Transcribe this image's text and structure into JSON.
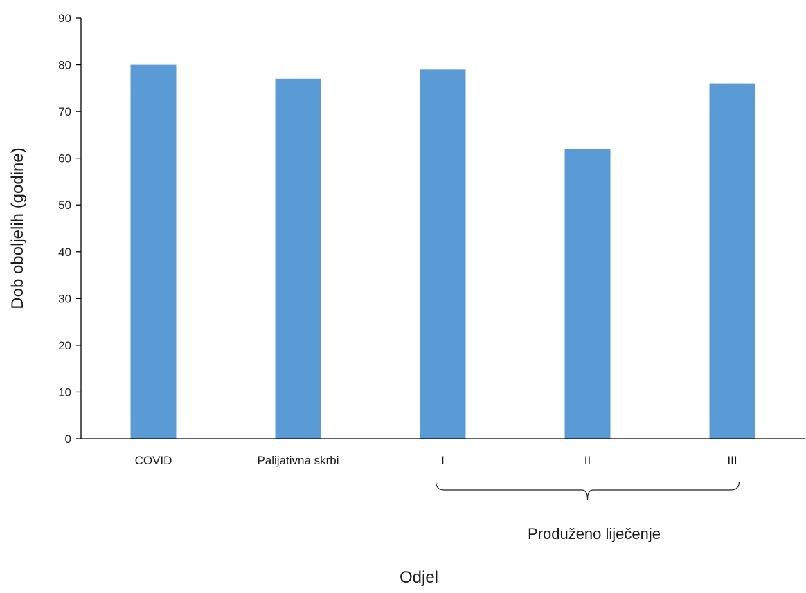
{
  "chart_data": {
    "type": "bar",
    "title": "",
    "xlabel": "Odjel",
    "ylabel": "Dob oboljelih (godine)",
    "categories": [
      "COVID",
      "Palijativna skrbi",
      "I",
      "II",
      "III"
    ],
    "values": [
      80,
      77,
      79,
      62,
      76
    ],
    "ylim": [
      0,
      90
    ],
    "yticks": [
      0,
      10,
      20,
      30,
      40,
      50,
      60,
      70,
      80,
      90
    ],
    "grid": false,
    "legend": "none",
    "bar_color": "#5b9bd5",
    "category_group": {
      "label": "Produženo liječenje",
      "members": [
        "I",
        "II",
        "III"
      ]
    }
  }
}
